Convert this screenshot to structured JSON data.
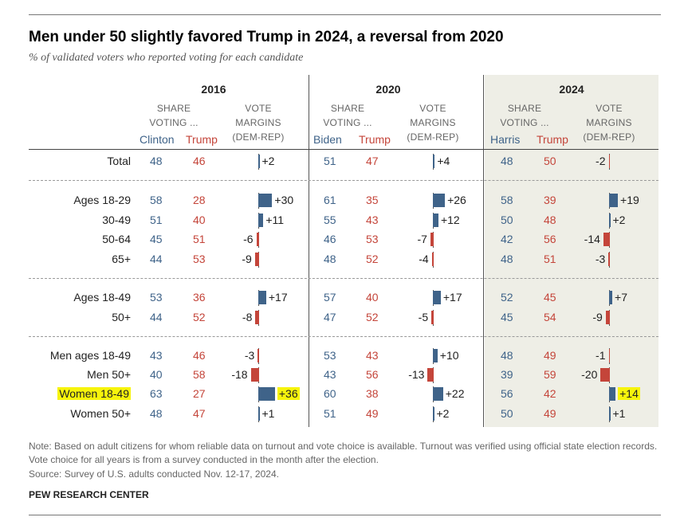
{
  "title": "Men under 50 slightly favored Trump in 2024, a reversal from 2020",
  "subtitle": "% of validated voters who reported voting for each candidate",
  "header": {
    "share_line1": "SHARE",
    "share_line2": "VOTING ...",
    "margin_line1": "VOTE",
    "margin_line2": "MARGINS",
    "margin_line3": "(DEM-REP)"
  },
  "colors": {
    "dem": "#3f6389",
    "rep": "#c4453a",
    "highlight": "#f7f40c",
    "shade_2024": "#eeeee6"
  },
  "chart_data": {
    "type": "table",
    "years": [
      {
        "year": "2016",
        "dem": "Clinton",
        "rep": "Trump"
      },
      {
        "year": "2020",
        "dem": "Biden",
        "rep": "Trump"
      },
      {
        "year": "2024",
        "dem": "Harris",
        "rep": "Trump"
      }
    ],
    "groups": [
      {
        "label": "Total",
        "highlight": false,
        "values": [
          {
            "dem": 48,
            "rep": 46,
            "margin": 2,
            "margin_label": "+2"
          },
          {
            "dem": 51,
            "rep": 47,
            "margin": 4,
            "margin_label": "+4"
          },
          {
            "dem": 48,
            "rep": 50,
            "margin": -2,
            "margin_label": "-2"
          }
        ]
      },
      {
        "label": "Ages 18-29",
        "highlight": false,
        "values": [
          {
            "dem": 58,
            "rep": 28,
            "margin": 30,
            "margin_label": "+30"
          },
          {
            "dem": 61,
            "rep": 35,
            "margin": 26,
            "margin_label": "+26"
          },
          {
            "dem": 58,
            "rep": 39,
            "margin": 19,
            "margin_label": "+19"
          }
        ]
      },
      {
        "label": "30-49",
        "highlight": false,
        "values": [
          {
            "dem": 51,
            "rep": 40,
            "margin": 11,
            "margin_label": "+11"
          },
          {
            "dem": 55,
            "rep": 43,
            "margin": 12,
            "margin_label": "+12"
          },
          {
            "dem": 50,
            "rep": 48,
            "margin": 2,
            "margin_label": "+2"
          }
        ]
      },
      {
        "label": "50-64",
        "highlight": false,
        "values": [
          {
            "dem": 45,
            "rep": 51,
            "margin": -6,
            "margin_label": "-6"
          },
          {
            "dem": 46,
            "rep": 53,
            "margin": -7,
            "margin_label": "-7"
          },
          {
            "dem": 42,
            "rep": 56,
            "margin": -14,
            "margin_label": "-14"
          }
        ]
      },
      {
        "label": "65+",
        "highlight": false,
        "values": [
          {
            "dem": 44,
            "rep": 53,
            "margin": -9,
            "margin_label": "-9"
          },
          {
            "dem": 48,
            "rep": 52,
            "margin": -4,
            "margin_label": "-4"
          },
          {
            "dem": 48,
            "rep": 51,
            "margin": -3,
            "margin_label": "-3"
          }
        ]
      },
      {
        "label": "Ages 18-49",
        "highlight": false,
        "values": [
          {
            "dem": 53,
            "rep": 36,
            "margin": 17,
            "margin_label": "+17"
          },
          {
            "dem": 57,
            "rep": 40,
            "margin": 17,
            "margin_label": "+17"
          },
          {
            "dem": 52,
            "rep": 45,
            "margin": 7,
            "margin_label": "+7"
          }
        ]
      },
      {
        "label": "50+",
        "highlight": false,
        "values": [
          {
            "dem": 44,
            "rep": 52,
            "margin": -8,
            "margin_label": "-8"
          },
          {
            "dem": 47,
            "rep": 52,
            "margin": -5,
            "margin_label": "-5"
          },
          {
            "dem": 45,
            "rep": 54,
            "margin": -9,
            "margin_label": "-9"
          }
        ]
      },
      {
        "label": "Men ages 18-49",
        "highlight": false,
        "values": [
          {
            "dem": 43,
            "rep": 46,
            "margin": -3,
            "margin_label": "-3"
          },
          {
            "dem": 53,
            "rep": 43,
            "margin": 10,
            "margin_label": "+10"
          },
          {
            "dem": 48,
            "rep": 49,
            "margin": -1,
            "margin_label": "-1"
          }
        ]
      },
      {
        "label": "Men 50+",
        "highlight": false,
        "values": [
          {
            "dem": 40,
            "rep": 58,
            "margin": -18,
            "margin_label": "-18"
          },
          {
            "dem": 43,
            "rep": 56,
            "margin": -13,
            "margin_label": "-13"
          },
          {
            "dem": 39,
            "rep": 59,
            "margin": -20,
            "margin_label": "-20"
          }
        ]
      },
      {
        "label": "Women 18-49",
        "highlight": true,
        "values": [
          {
            "dem": 63,
            "rep": 27,
            "margin": 36,
            "margin_label": "+36",
            "highlight": true
          },
          {
            "dem": 60,
            "rep": 38,
            "margin": 22,
            "margin_label": "+22"
          },
          {
            "dem": 56,
            "rep": 42,
            "margin": 14,
            "margin_label": "+14",
            "highlight": true
          }
        ]
      },
      {
        "label": "Women 50+",
        "highlight": false,
        "values": [
          {
            "dem": 48,
            "rep": 47,
            "margin": 1,
            "margin_label": "+1"
          },
          {
            "dem": 51,
            "rep": 49,
            "margin": 2,
            "margin_label": "+2"
          },
          {
            "dem": 50,
            "rep": 49,
            "margin": 1,
            "margin_label": "+1"
          }
        ]
      }
    ]
  },
  "note": "Note: Based on adult citizens for whom reliable data on turnout and vote choice is available. Turnout was verified using official state election records. Vote choice for all years is from a survey conducted in the month after the election.",
  "source": "Source: Survey of U.S. adults conducted Nov. 12-17, 2024.",
  "brand": "PEW RESEARCH CENTER"
}
